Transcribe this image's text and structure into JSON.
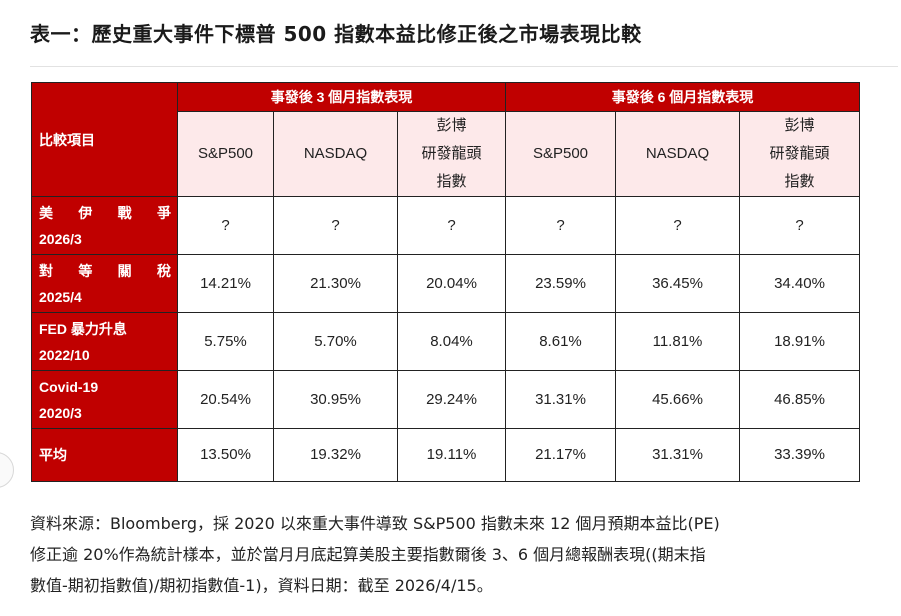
{
  "title": "表一：歷史重大事件下標普 500 指數本益比修正後之市場表現比較",
  "table": {
    "corner": "比較項目",
    "groups": [
      "事發後 3 個月指數表現",
      "事發後 6 個月指數表現"
    ],
    "subheaders": [
      [
        "S&P500"
      ],
      [
        "NASDAQ"
      ],
      [
        "彭博",
        "研發龍頭",
        "指數"
      ],
      [
        "S&P500"
      ],
      [
        "NASDAQ"
      ],
      [
        "彭博",
        "研發龍頭",
        "指數"
      ]
    ],
    "rows": [
      {
        "label": [
          "美",
          "伊",
          "戰",
          "爭"
        ],
        "label2": "2026/3",
        "values": [
          "?",
          "?",
          "?",
          "?",
          "?",
          "?"
        ]
      },
      {
        "label": [
          "對",
          "等",
          "關",
          "稅"
        ],
        "label2": "2025/4",
        "values": [
          "14.21%",
          "21.30%",
          "20.04%",
          "23.59%",
          "36.45%",
          "34.40%"
        ]
      },
      {
        "label": [
          "FED 暴力升息"
        ],
        "label2": "2022/10",
        "values": [
          "5.75%",
          "5.70%",
          "8.04%",
          "8.61%",
          "11.81%",
          "18.91%"
        ]
      },
      {
        "label": [
          "Covid-19"
        ],
        "label2": "2020/3",
        "values": [
          "20.54%",
          "30.95%",
          "29.24%",
          "31.31%",
          "45.66%",
          "46.85%"
        ]
      },
      {
        "label": [
          "平均"
        ],
        "label2": "",
        "values": [
          "13.50%",
          "19.32%",
          "19.11%",
          "21.17%",
          "31.31%",
          "33.39%"
        ]
      }
    ]
  },
  "note": {
    "line1": "資料來源：Bloomberg，採 2020 以來重大事件導致 S&P500 指數未來 12 個月預期本益比(PE)",
    "line2": "修正逾 20%作為統計樣本，並於當月月底起算美股主要指數爾後 3、6 個月總報酬表現((期末指",
    "line3": "數值-期初指數值)/期初指數值-1)，資料日期：截至 2026/4/15。"
  }
}
